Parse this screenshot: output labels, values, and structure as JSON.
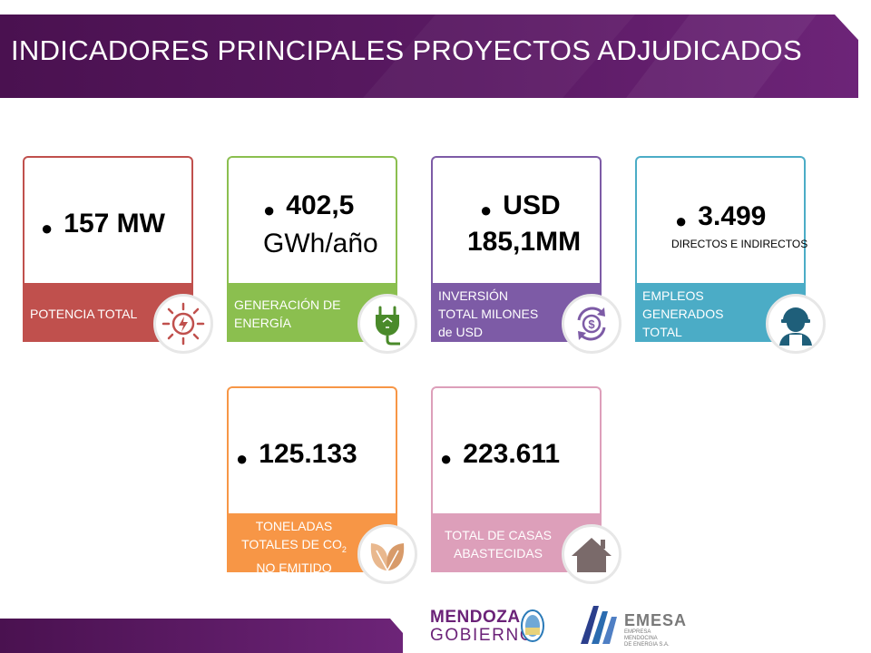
{
  "title": "INDICADORES PRINCIPALES PROYECTOS ADJUDICADOS",
  "colors": {
    "banner": "#4a1150",
    "red": "#c0504d",
    "green": "#8bbf4f",
    "purple": "#7d5ba6",
    "blue": "#4bacc6",
    "orange": "#f79646",
    "pink": "#dd9fba"
  },
  "cards": [
    {
      "id": "potencia",
      "value": "157 MW",
      "label": "POTENCIA TOTAL",
      "icon": "sun-energy-icon",
      "color": "#c0504d"
    },
    {
      "id": "generacion",
      "value_main": "402,5",
      "value_unit": "GWh/año",
      "label_line1": "GENERACIÓN DE",
      "label_line2": "ENERGÍA",
      "icon": "eco-plug-icon",
      "color": "#8bbf4f"
    },
    {
      "id": "inversion",
      "value_line1": "USD",
      "value_line2": "185,1MM",
      "label_line1": "INVERSIÓN",
      "label_line2": "TOTAL MILONES",
      "label_line3": "de USD",
      "icon": "dollar-exchange-icon",
      "color": "#7d5ba6"
    },
    {
      "id": "empleos",
      "value_main": "3.499",
      "value_sub": "DIRECTOS E INDIRECTOS",
      "label_line1": "EMPLEOS",
      "label_line2": "GENERADOS",
      "label_line3": "TOTAL",
      "icon": "worker-icon",
      "color": "#4bacc6"
    },
    {
      "id": "toneladas",
      "value": "125.133",
      "label_line1": "TONELADAS",
      "label_line2_prefix": "TOTALES DE CO",
      "label_line2_sub": "2",
      "label_line3": "NO EMITIDO",
      "icon": "leaf-icon",
      "color": "#f79646"
    },
    {
      "id": "casas",
      "value": "223.611",
      "label_line1": "TOTAL DE CASAS",
      "label_line2": "ABASTECIDAS",
      "icon": "house-icon",
      "color": "#dd9fba"
    }
  ],
  "logos": {
    "mendoza_top": "MENDOZA",
    "mendoza_bottom": "GOBIERNO",
    "emesa_name": "EMESA",
    "emesa_sub_line1": "EMPRESA",
    "emesa_sub_line2": "MENDOCINA",
    "emesa_sub_line3": "DE ENERGIA S.A."
  }
}
